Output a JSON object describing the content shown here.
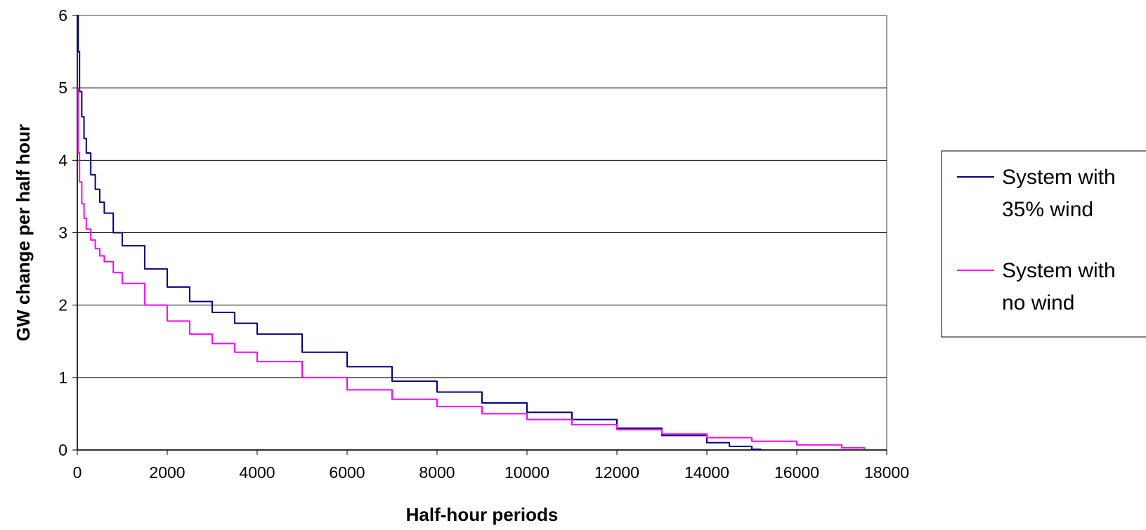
{
  "chart_data": {
    "type": "line",
    "title": "",
    "xlabel": "Half-hour periods",
    "ylabel": "GW change per half hour",
    "xlim": [
      0,
      18000
    ],
    "ylim": [
      0,
      6
    ],
    "xticks": [
      0,
      2000,
      4000,
      6000,
      8000,
      10000,
      12000,
      14000,
      16000,
      18000
    ],
    "yticks": [
      0,
      1,
      2,
      3,
      4,
      5,
      6
    ],
    "grid": "horizontal",
    "legend_position": "right",
    "series": [
      {
        "name_lines": [
          "System with",
          "35% wind"
        ],
        "color": "#000080",
        "x": [
          0,
          20,
          50,
          100,
          150,
          200,
          300,
          400,
          500,
          600,
          800,
          1000,
          1500,
          2000,
          2500,
          3000,
          3500,
          4000,
          5000,
          6000,
          7000,
          8000,
          9000,
          10000,
          11000,
          12000,
          13000,
          14000,
          14500,
          15000,
          15200
        ],
        "values": [
          6.0,
          5.5,
          4.95,
          4.6,
          4.3,
          4.1,
          3.8,
          3.6,
          3.42,
          3.27,
          3.0,
          2.82,
          2.5,
          2.25,
          2.05,
          1.9,
          1.75,
          1.6,
          1.35,
          1.15,
          0.95,
          0.8,
          0.65,
          0.52,
          0.42,
          0.3,
          0.2,
          0.1,
          0.05,
          0.01,
          0.0
        ]
      },
      {
        "name_lines": [
          "System with",
          "no wind"
        ],
        "color": "#FF00FF",
        "x": [
          0,
          20,
          50,
          100,
          150,
          200,
          300,
          400,
          500,
          600,
          800,
          1000,
          1500,
          2000,
          2500,
          3000,
          3500,
          4000,
          5000,
          6000,
          7000,
          8000,
          9000,
          10000,
          11000,
          12000,
          13000,
          14000,
          15000,
          16000,
          17000,
          17500
        ],
        "values": [
          5.0,
          4.1,
          3.7,
          3.4,
          3.2,
          3.05,
          2.9,
          2.78,
          2.68,
          2.6,
          2.45,
          2.3,
          2.0,
          1.78,
          1.6,
          1.47,
          1.35,
          1.22,
          1.0,
          0.83,
          0.7,
          0.6,
          0.5,
          0.42,
          0.35,
          0.28,
          0.22,
          0.17,
          0.12,
          0.07,
          0.03,
          0.01
        ]
      }
    ]
  }
}
